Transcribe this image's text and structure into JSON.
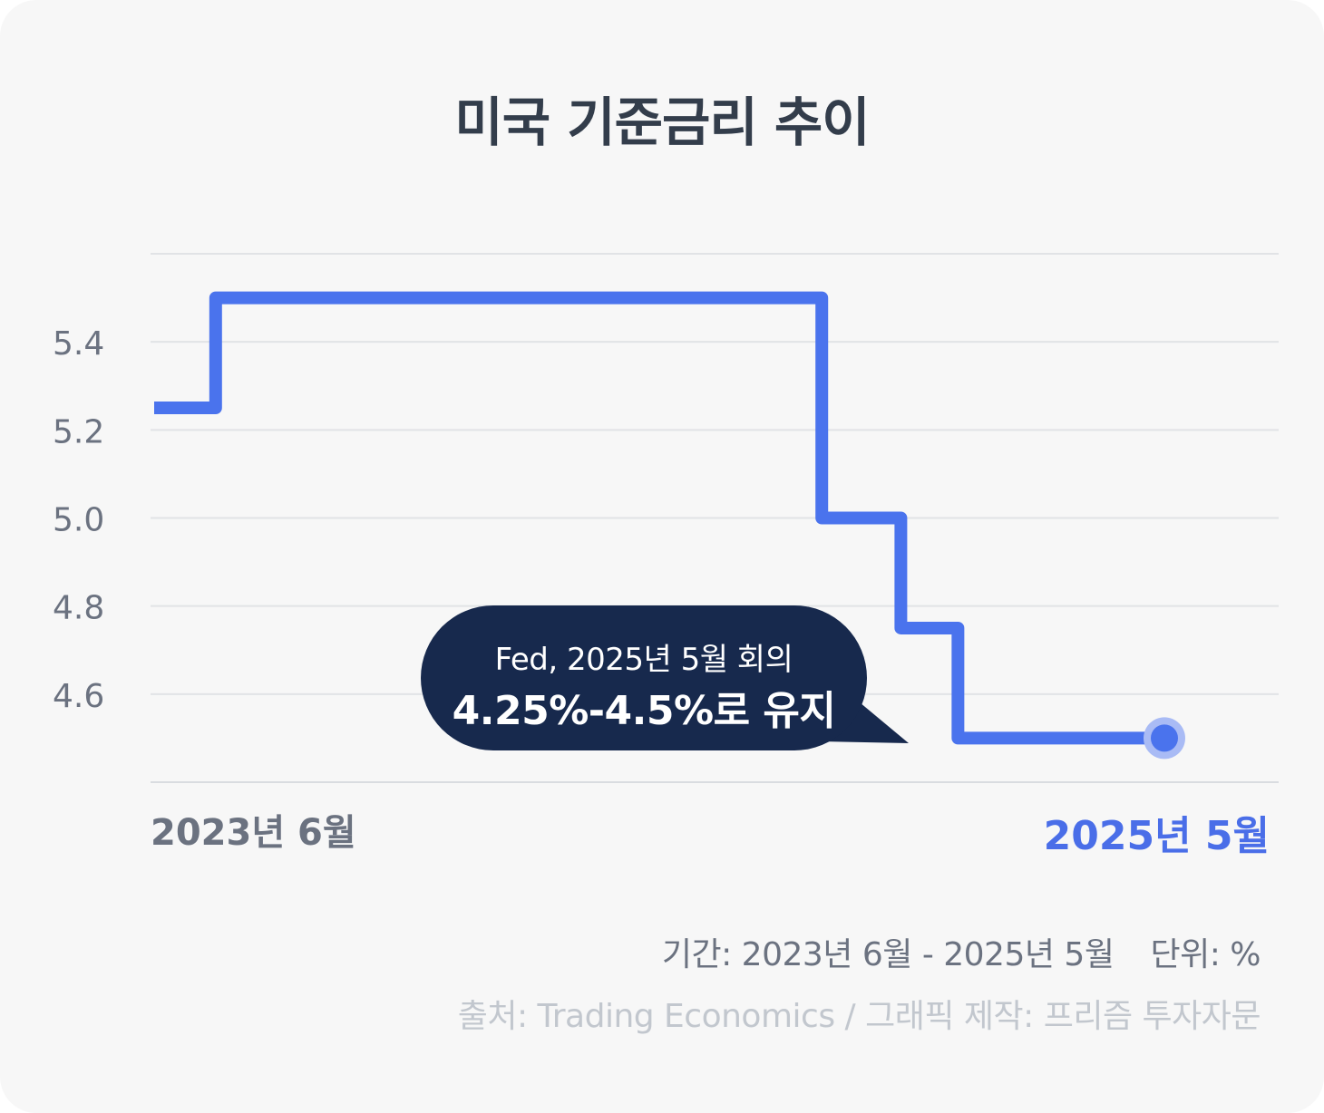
{
  "title": "미국 기준금리 추이",
  "chart_data": {
    "type": "line",
    "step": true,
    "title": "미국 기준금리 추이",
    "y_ticks": [
      "5.4",
      "5.2",
      "5.0",
      "4.8",
      "4.6"
    ],
    "ylim": [
      4.4,
      5.6
    ],
    "grid": true,
    "series": [
      {
        "color": "#4a73ed",
        "points": [
          {
            "month": 0,
            "value": 5.25
          },
          {
            "month": 1.4,
            "value": 5.5
          },
          {
            "month": 15.2,
            "value": 5.0
          },
          {
            "month": 17,
            "value": 4.75
          },
          {
            "month": 18.3,
            "value": 4.5
          },
          {
            "month": 23,
            "value": 4.5
          }
        ]
      }
    ],
    "x_start_label": "2023년 6월",
    "x_end_label": "2025년 5월",
    "x_month_range": [
      0,
      23
    ]
  },
  "callout": {
    "line1": "Fed, 2025년 5월 회의",
    "line2": "4.25%-4.5%로 유지"
  },
  "footer": {
    "period": "기간: 2023년 6월 - 2025년 5월",
    "unit": "단위: %",
    "source": "출처: Trading Economics / 그래픽 제작: 프리즘 투자자문"
  },
  "colors": {
    "line": "#4a73ed",
    "end_label": "#4a6ee8",
    "callout_bg": "#17294d",
    "background": "#f7f7f7"
  }
}
